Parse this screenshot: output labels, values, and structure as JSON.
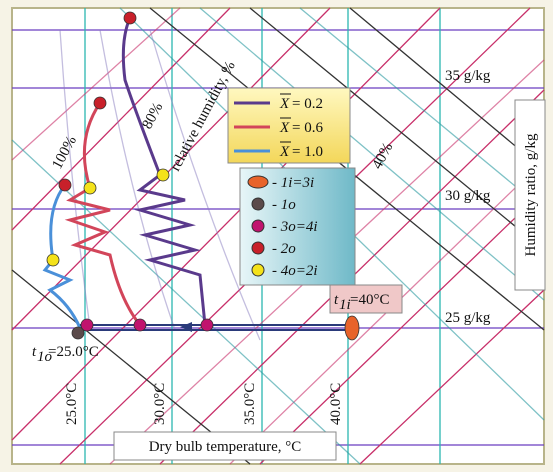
{
  "humidity_ratio_labels": [
    "35 g/kg",
    "30 g/kg",
    "25 g/kg"
  ],
  "humidity_ratio_axis": "Humidity ratio, g/kg",
  "relative_humidity_title": "relative humidity, %",
  "relative_humidity_labels": [
    "100%",
    "80%",
    "40%"
  ],
  "line_legend": [
    {
      "symbol": "X",
      "text": " = 0.2",
      "color": "#5a3a8c"
    },
    {
      "symbol": "X",
      "text": " = 0.6",
      "color": "#d2455a"
    },
    {
      "symbol": "X",
      "text": " = 1.0",
      "color": "#4a90d9"
    }
  ],
  "point_legend": [
    {
      "text": "- 1i=3i",
      "color": "#e8632a"
    },
    {
      "text": "- 1o",
      "color": "#5b4a4a"
    },
    {
      "text": "- 3o=4i",
      "color": "#c0136e"
    },
    {
      "text": "- 2o",
      "color": "#c8202a"
    },
    {
      "text": "- 4o=2i",
      "color": "#f4e21a"
    }
  ],
  "inlet_temp": {
    "symbol": "t",
    "sub": "1i",
    "text": "=40°C"
  },
  "outlet_temp": {
    "symbol": "t",
    "sub": "1o",
    "text": "=25.0°C"
  },
  "dry_bulb_labels": [
    "25.0°C",
    "30.0°C",
    "35.0°C",
    "40.0°C"
  ],
  "dry_bulb_axis": "Dry bulb temperature, °C"
}
